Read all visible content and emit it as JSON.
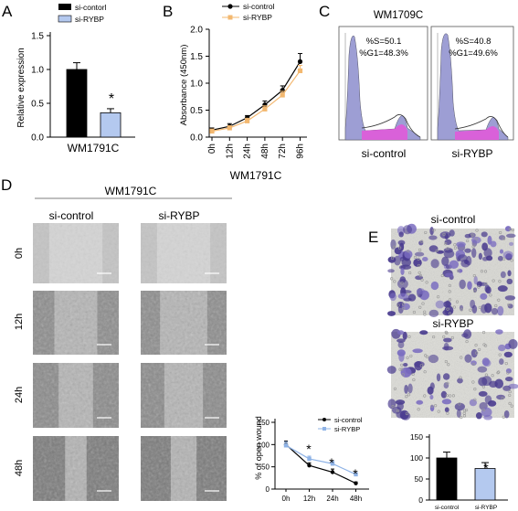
{
  "panels": {
    "A": {
      "letter": "A",
      "ylabel": "Relative expression",
      "xlabel": "WM1791C",
      "legend": [
        "si-contorl",
        "si-RYBP"
      ],
      "significance": "*",
      "yticks": [
        "0.0",
        "0.5",
        "1.0",
        "1.5"
      ]
    },
    "B": {
      "letter": "B",
      "ylabel": "Absorbance (450nm)",
      "xlabel": "WM1791C",
      "legend": [
        "si-control",
        "si-RYBP"
      ],
      "yticks": [
        "0.0",
        "0.5",
        "1.0",
        "1.5",
        "2.0"
      ],
      "xticks": [
        "0h",
        "12h",
        "24h",
        "48h",
        "72h",
        "96h"
      ]
    },
    "C": {
      "letter": "C",
      "title": "WM1709C",
      "left": {
        "label": "si-control",
        "s": "%S=50.1",
        "g1": "%G1=48.3%"
      },
      "right": {
        "label": "si-RYBP",
        "s": "%S=40.8",
        "g1": "%G1=49.6%"
      }
    },
    "D": {
      "letter": "D",
      "title": "WM1791C",
      "columns": [
        "si-control",
        "si-RYBP"
      ],
      "rows": [
        "0h",
        "12h",
        "24h",
        "48h"
      ],
      "ylabel": "% of open wound",
      "legend": [
        "si-control",
        "si-RYBP"
      ],
      "yticks": [
        "0",
        "50",
        "100",
        "150"
      ],
      "xticks": [
        "0h",
        "12h",
        "24h",
        "48h"
      ],
      "stars": [
        "*",
        "*",
        "*"
      ]
    },
    "E": {
      "letter": "E",
      "top_label": "si-control",
      "bottom_label": "si-RYBP",
      "yticks": [
        "0",
        "50",
        "100",
        "150"
      ],
      "xticks": [
        "si-control",
        "si-RYBP"
      ],
      "significance": "*"
    }
  },
  "chart_data": [
    {
      "panel": "A",
      "type": "bar",
      "categories": [
        "si-contorl",
        "si-RYBP"
      ],
      "values": [
        1.0,
        0.36
      ],
      "errors": [
        0.1,
        0.06
      ],
      "ylabel": "Relative expression",
      "xlabel": "WM1791C",
      "ylim": [
        0,
        1.5
      ]
    },
    {
      "panel": "B",
      "type": "line",
      "x": [
        "0h",
        "12h",
        "24h",
        "48h",
        "72h",
        "96h"
      ],
      "series": [
        {
          "name": "si-control",
          "values": [
            0.13,
            0.2,
            0.36,
            0.6,
            0.87,
            1.4
          ],
          "errors": [
            0.04,
            0.05,
            0.04,
            0.07,
            0.08,
            0.15
          ]
        },
        {
          "name": "si-RYBP",
          "values": [
            0.11,
            0.17,
            0.3,
            0.52,
            0.78,
            1.23
          ],
          "errors": [
            0.04,
            0.04,
            0.05,
            0.06,
            0.07,
            0.1
          ]
        }
      ],
      "ylabel": "Absorbance (450nm)",
      "xlabel": "WM1791C",
      "ylim": [
        0,
        2.0
      ]
    },
    {
      "panel": "D",
      "type": "line",
      "x": [
        "0h",
        "12h",
        "24h",
        "48h"
      ],
      "series": [
        {
          "name": "si-control",
          "values": [
            100,
            53,
            38,
            13
          ],
          "errors": [
            8,
            6,
            7,
            3
          ]
        },
        {
          "name": "si-RYBP",
          "values": [
            98,
            68,
            57,
            33
          ],
          "errors": [
            8,
            6,
            6,
            4
          ]
        }
      ],
      "ylabel": "% of open wound",
      "ylim": [
        0,
        150
      ]
    },
    {
      "panel": "E",
      "type": "bar",
      "categories": [
        "si-control",
        "si-RYBP"
      ],
      "values": [
        100,
        75
      ],
      "errors": [
        14,
        14
      ],
      "ylim": [
        0,
        150
      ]
    }
  ],
  "colors": {
    "black": "#000000",
    "light_blue": "#b4c9ef",
    "orange": "#f3b870",
    "hist_purple": "#9d9ed4",
    "hist_magenta": "#e05ad9",
    "stain": "#4a3c8f",
    "wound": "#a9a9a9"
  }
}
